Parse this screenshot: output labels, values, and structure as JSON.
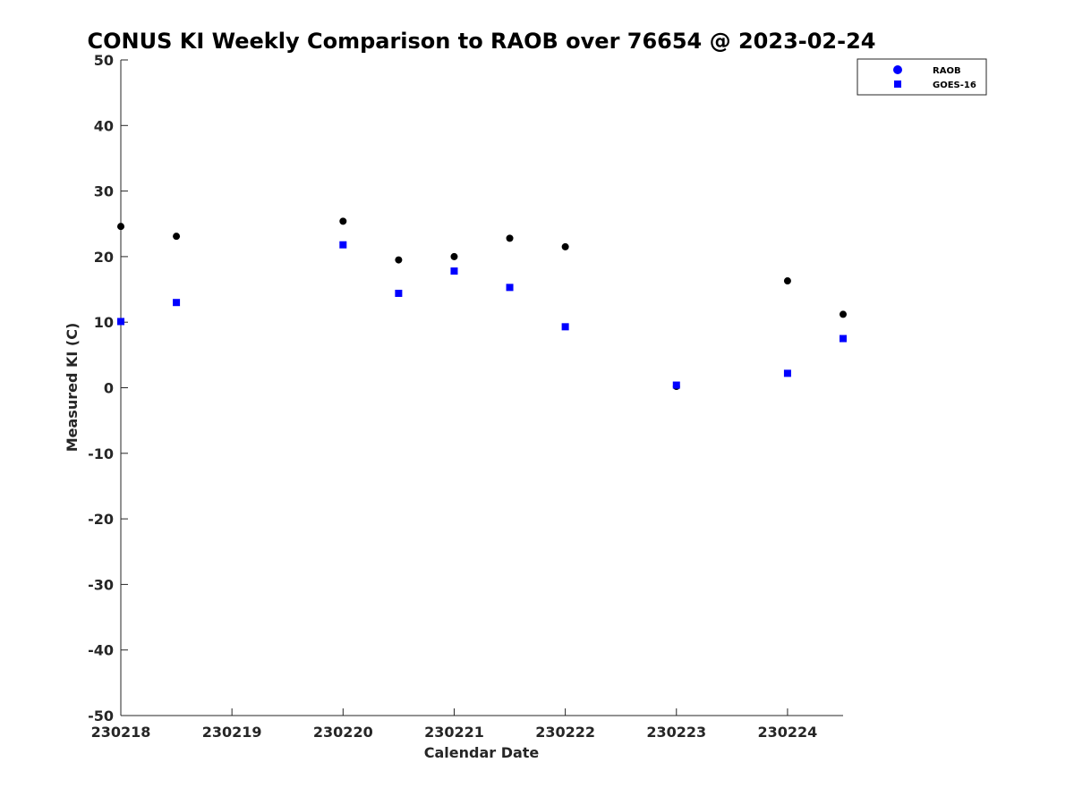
{
  "chart_data": {
    "type": "scatter",
    "title": "CONUS KI Weekly Comparison to RAOB over 76654 @ 2023-02-24",
    "xlabel": "Calendar Date",
    "ylabel": "Measured KI (C)",
    "xlim": [
      0,
      6.5
    ],
    "ylim": [
      -50,
      50
    ],
    "x_ticks": [
      {
        "value": 0,
        "label": "230218"
      },
      {
        "value": 1,
        "label": "230219"
      },
      {
        "value": 2,
        "label": "230220"
      },
      {
        "value": 3,
        "label": "230221"
      },
      {
        "value": 4,
        "label": "230222"
      },
      {
        "value": 5,
        "label": "230223"
      },
      {
        "value": 6,
        "label": "230224"
      }
    ],
    "y_ticks": [
      50,
      40,
      30,
      20,
      10,
      0,
      -10,
      -20,
      -30,
      -40,
      -50
    ],
    "grid": false,
    "legend_position": "top-right",
    "series": [
      {
        "name": "RAOB",
        "marker": "circle",
        "color": "#000000",
        "legend_color": "#0000ff",
        "points": [
          {
            "x": 0.0,
            "y": 24.6
          },
          {
            "x": 0.5,
            "y": 23.1
          },
          {
            "x": 2.0,
            "y": 25.4
          },
          {
            "x": 2.5,
            "y": 19.5
          },
          {
            "x": 3.0,
            "y": 20.0
          },
          {
            "x": 3.5,
            "y": 22.8
          },
          {
            "x": 4.0,
            "y": 21.5
          },
          {
            "x": 5.0,
            "y": 0.2
          },
          {
            "x": 6.0,
            "y": 16.3
          },
          {
            "x": 6.5,
            "y": 11.2
          }
        ]
      },
      {
        "name": "GOES-16",
        "marker": "square",
        "color": "#0000ff",
        "points": [
          {
            "x": 0.0,
            "y": 10.1
          },
          {
            "x": 0.5,
            "y": 13.0
          },
          {
            "x": 2.0,
            "y": 21.8
          },
          {
            "x": 2.5,
            "y": 14.4
          },
          {
            "x": 3.0,
            "y": 17.8
          },
          {
            "x": 3.5,
            "y": 15.3
          },
          {
            "x": 4.0,
            "y": 9.3
          },
          {
            "x": 5.0,
            "y": 0.4
          },
          {
            "x": 6.0,
            "y": 2.2
          },
          {
            "x": 6.5,
            "y": 7.5
          }
        ]
      }
    ]
  }
}
